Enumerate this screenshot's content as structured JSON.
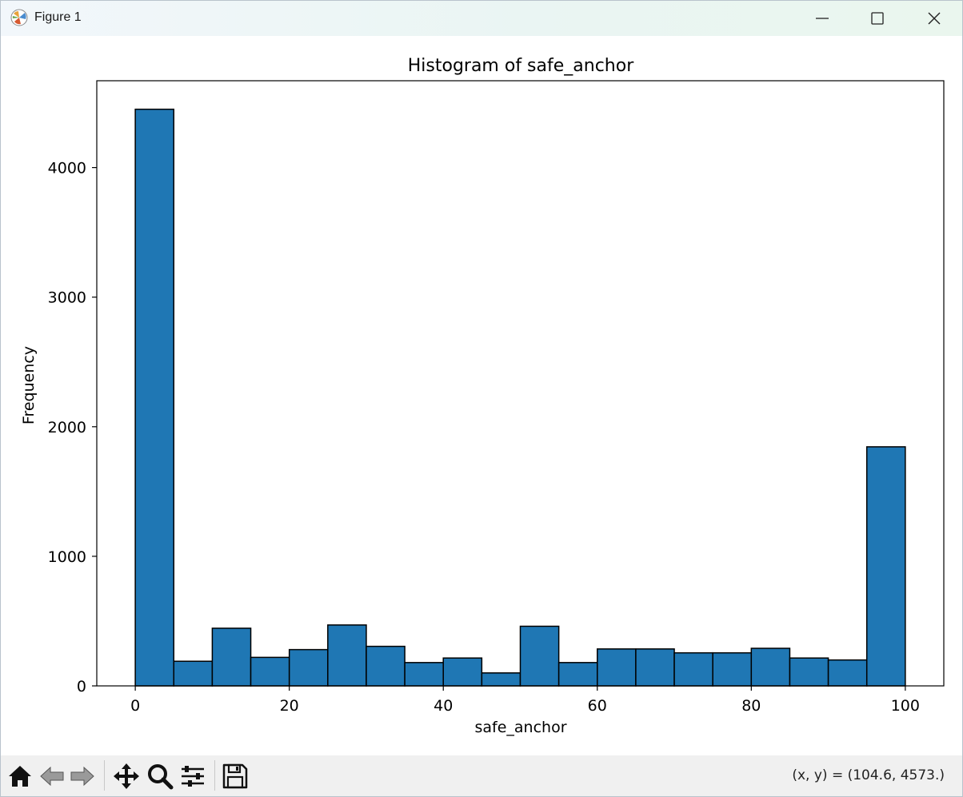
{
  "window": {
    "title": "Figure 1",
    "icon": "matplotlib-icon",
    "controls": [
      "minimize-icon",
      "maximize-icon",
      "close-icon"
    ]
  },
  "toolbar": {
    "buttons": [
      "home-icon",
      "back-arrow-icon",
      "forward-arrow-icon",
      "pan-icon",
      "zoom-icon",
      "configure-subplots-icon",
      "save-icon"
    ],
    "coords": "(x, y) = (104.6, 4573.)"
  },
  "colors": {
    "bar_fill": "#1f77b4",
    "bar_edge": "#000000"
  },
  "chart_data": {
    "type": "bar",
    "title": "Histogram of safe_anchor",
    "xlabel": "safe_anchor",
    "ylabel": "Frequency",
    "bin_edges": [
      0,
      5,
      10,
      15,
      20,
      25,
      30,
      35,
      40,
      45,
      50,
      55,
      60,
      65,
      70,
      75,
      80,
      85,
      90,
      95,
      100
    ],
    "values": [
      4450,
      190,
      445,
      220,
      280,
      470,
      305,
      180,
      215,
      100,
      460,
      180,
      285,
      285,
      255,
      255,
      290,
      215,
      200,
      1845
    ],
    "xlim": [
      -5,
      105
    ],
    "ylim": [
      0,
      4670
    ],
    "xticks": [
      0,
      20,
      40,
      60,
      80,
      100
    ],
    "xtick_labels": [
      "0",
      "20",
      "40",
      "60",
      "80",
      "100"
    ],
    "yticks": [
      0,
      1000,
      2000,
      3000,
      4000
    ],
    "ytick_labels": [
      "0",
      "1000",
      "2000",
      "3000",
      "4000"
    ],
    "grid": false,
    "legend": "none"
  }
}
